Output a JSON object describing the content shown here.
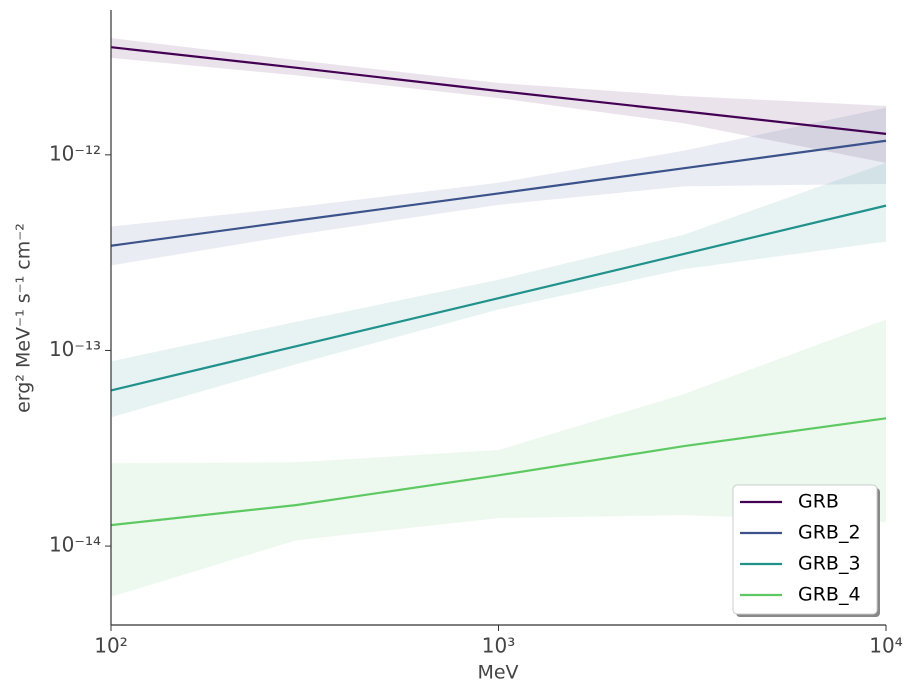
{
  "chart_data": {
    "type": "line",
    "xlabel": "MeV",
    "ylabel": "erg² MeV⁻¹ s⁻¹ cm⁻²",
    "xlog": true,
    "ylog": true,
    "legend": "lower right",
    "x": [
      100,
      300,
      1000,
      3000,
      10000
    ],
    "xlim": [
      100,
      10000
    ],
    "xticks": [
      {
        "value": 100,
        "label": "10²"
      },
      {
        "value": 1000,
        "label": "10³"
      },
      {
        "value": 10000,
        "label": "10⁴"
      }
    ],
    "ylim": [
      3.95e-15,
      5.5e-12
    ],
    "yticks": [
      {
        "value": 1e-14,
        "label": "10⁻¹⁴"
      },
      {
        "value": 1e-13,
        "label": "10⁻¹³"
      },
      {
        "value": 1e-12,
        "label": "10⁻¹²"
      }
    ],
    "series": [
      {
        "name": "GRB",
        "color": "#440154",
        "values": [
          3.55e-12,
          2.79e-12,
          2.12e-12,
          1.67e-12,
          1.28e-12
        ],
        "upper": [
          3.95e-12,
          3.05e-12,
          2.33e-12,
          2e-12,
          1.78e-12
        ],
        "lower": [
          3.13e-12,
          2.55e-12,
          1.95e-12,
          1.45e-12,
          9.1e-13
        ]
      },
      {
        "name": "GRB_2",
        "color": "#3b528b",
        "values": [
          3.43e-13,
          4.61e-13,
          6.35e-13,
          8.53e-13,
          1.18e-12
        ],
        "upper": [
          4.3e-13,
          5.4e-13,
          7.2e-13,
          1.05e-12,
          1.74e-12
        ],
        "lower": [
          2.72e-13,
          3.9e-13,
          5.55e-13,
          6.9e-13,
          7.1e-13
        ]
      },
      {
        "name": "GRB_3",
        "color": "#21918c",
        "values": [
          6.25e-14,
          1.05e-13,
          1.85e-13,
          3.11e-13,
          5.5e-13
        ],
        "upper": [
          8.8e-14,
          1.4e-13,
          2.3e-13,
          3.9e-13,
          9.1e-13
        ],
        "lower": [
          4.55e-14,
          8.5e-14,
          1.62e-13,
          2.6e-13,
          3.6e-13
        ]
      },
      {
        "name": "GRB_4",
        "color": "#5ec962",
        "values": [
          1.28e-14,
          1.62e-14,
          2.3e-14,
          3.24e-14,
          4.5e-14
        ],
        "upper": [
          2.65e-14,
          2.68e-14,
          3.1e-14,
          5.97e-14,
          1.44e-13
        ],
        "lower": [
          5.5e-15,
          1.07e-14,
          1.39e-14,
          1.44e-14,
          1.33e-14
        ]
      }
    ]
  }
}
